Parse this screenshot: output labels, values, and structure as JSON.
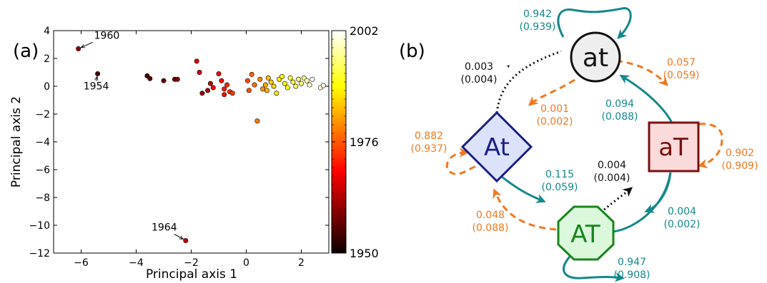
{
  "panel_a": {
    "label": "(a)",
    "xlabel": "Principal axis 1",
    "ylabel": "Principal axis 2",
    "colorbar_ticks": [
      "2002",
      "1976",
      "1950"
    ],
    "annotations": [
      "1960",
      "1954",
      "1964"
    ]
  },
  "chart_data": {
    "type": "scatter",
    "title": "",
    "xlabel": "Principal axis 1",
    "ylabel": "Principal axis 2",
    "xlim": [
      -7,
      3
    ],
    "ylim": [
      -12,
      4
    ],
    "xticks": [
      -6,
      -4,
      -2,
      0,
      2
    ],
    "yticks": [
      4,
      2,
      0,
      -2,
      -4,
      -6,
      -8,
      -10,
      -12
    ],
    "colorbar": {
      "min": 1950,
      "max": 2002,
      "ticks": [
        1950,
        1976,
        2002
      ],
      "colormap": "hot"
    },
    "annotations": [
      {
        "text": "1960",
        "x": -6.1,
        "y": 2.7
      },
      {
        "text": "1954",
        "x": -5.4,
        "y": 0.9
      },
      {
        "text": "1964",
        "x": -2.2,
        "y": -11.1
      }
    ],
    "points": [
      {
        "x": -6.1,
        "y": 2.7,
        "c": 1960
      },
      {
        "x": -5.4,
        "y": 0.9,
        "c": 1954
      },
      {
        "x": -2.2,
        "y": -11.1,
        "c": 1964
      },
      {
        "x": -3.6,
        "y": 0.75,
        "c": 1955
      },
      {
        "x": -3.5,
        "y": 0.55,
        "c": 1956
      },
      {
        "x": -3.0,
        "y": 0.4,
        "c": 1957
      },
      {
        "x": -2.6,
        "y": 0.5,
        "c": 1958
      },
      {
        "x": -2.5,
        "y": 0.5,
        "c": 1959
      },
      {
        "x": -1.8,
        "y": 1.8,
        "c": 1966
      },
      {
        "x": -1.7,
        "y": 1.0,
        "c": 1965
      },
      {
        "x": -1.6,
        "y": -0.5,
        "c": 1961
      },
      {
        "x": -1.4,
        "y": -0.3,
        "c": 1962
      },
      {
        "x": -1.3,
        "y": 0.2,
        "c": 1963
      },
      {
        "x": -1.2,
        "y": -0.1,
        "c": 1967
      },
      {
        "x": -1.0,
        "y": 0.9,
        "c": 1968
      },
      {
        "x": -0.9,
        "y": 0.4,
        "c": 1969
      },
      {
        "x": -0.8,
        "y": -0.6,
        "c": 1970
      },
      {
        "x": -0.8,
        "y": -0.2,
        "c": 1971
      },
      {
        "x": -0.7,
        "y": 0.1,
        "c": 1972
      },
      {
        "x": -0.6,
        "y": -0.4,
        "c": 1973
      },
      {
        "x": -0.5,
        "y": -0.5,
        "c": 1974
      },
      {
        "x": 0.05,
        "y": 0.4,
        "c": 1975
      },
      {
        "x": 0.1,
        "y": -0.3,
        "c": 1976
      },
      {
        "x": 0.2,
        "y": 0.85,
        "c": 1977
      },
      {
        "x": 0.3,
        "y": 0.1,
        "c": 1978
      },
      {
        "x": 0.4,
        "y": -2.5,
        "c": 1979
      },
      {
        "x": 0.5,
        "y": 0.5,
        "c": 1980
      },
      {
        "x": 0.6,
        "y": -0.2,
        "c": 1981
      },
      {
        "x": 0.7,
        "y": 0.1,
        "c": 1982
      },
      {
        "x": 0.75,
        "y": -0.3,
        "c": 1983
      },
      {
        "x": 0.8,
        "y": 0.6,
        "c": 1984
      },
      {
        "x": 0.9,
        "y": 0.3,
        "c": 1985
      },
      {
        "x": 1.0,
        "y": 0.0,
        "c": 1986
      },
      {
        "x": 1.1,
        "y": -0.5,
        "c": 1987
      },
      {
        "x": 1.2,
        "y": 0.5,
        "c": 1988
      },
      {
        "x": 1.3,
        "y": 0.7,
        "c": 1989
      },
      {
        "x": 1.4,
        "y": 0.2,
        "c": 1990
      },
      {
        "x": 1.5,
        "y": -0.1,
        "c": 1991
      },
      {
        "x": 1.6,
        "y": 0.6,
        "c": 1992
      },
      {
        "x": 1.7,
        "y": 0.3,
        "c": 1993
      },
      {
        "x": 1.8,
        "y": 0.0,
        "c": 1994
      },
      {
        "x": 1.9,
        "y": 0.5,
        "c": 1995
      },
      {
        "x": 2.0,
        "y": 0.2,
        "c": 1996
      },
      {
        "x": 2.1,
        "y": 0.6,
        "c": 1997
      },
      {
        "x": 2.2,
        "y": 0.4,
        "c": 1998
      },
      {
        "x": 2.3,
        "y": 0.1,
        "c": 1999
      },
      {
        "x": 2.7,
        "y": -0.1,
        "c": 2000
      },
      {
        "x": 2.8,
        "y": 0.05,
        "c": 2001
      },
      {
        "x": 2.4,
        "y": 0.5,
        "c": 2002
      }
    ]
  },
  "panel_b": {
    "label": "(b)",
    "colors": {
      "teal": "#14888a",
      "orange": "#f07820",
      "black": "#111111"
    },
    "nodes": {
      "at": {
        "label": "at",
        "fill": "#eeeeee",
        "stroke": "#111111",
        "text": "#111111"
      },
      "aT": {
        "label": "aT",
        "fill": "#fadada",
        "stroke": "#7a1010",
        "text": "#7a1010"
      },
      "At": {
        "label": "At",
        "fill": "#dde2fb",
        "stroke": "#1a1e86",
        "text": "#1a1e86"
      },
      "AT": {
        "label": "AT",
        "fill": "#dbf8dc",
        "stroke": "#18861c",
        "text": "#18861c"
      }
    },
    "edges": {
      "at_self": {
        "v1": "0.942",
        "v2": "(0.939)"
      },
      "at_to_aT": {
        "v1": "0.057",
        "v2": "(0.059)"
      },
      "At_to_at": {
        "v1": "0.003",
        "v2": "(0.004)"
      },
      "at_to_At": {
        "v1": "0.001",
        "v2": "(0.002)"
      },
      "aT_to_at": {
        "v1": "0.094",
        "v2": "(0.088)"
      },
      "At_self": {
        "v1": "0.882",
        "v2": "(0.937)"
      },
      "aT_self": {
        "v1": "0.902",
        "v2": "(0.909)"
      },
      "AT_to_aT": {
        "v1": "0.004",
        "v2": "(0.004)"
      },
      "At_to_AT": {
        "v1": "0.115",
        "v2": "(0.059)"
      },
      "AT_to_At": {
        "v1": "0.048",
        "v2": "(0.088)"
      },
      "aT_to_AT": {
        "v1": "0.004",
        "v2": "(0.002)"
      },
      "AT_self": {
        "v1": "0.947",
        "v2": "(0.908)"
      }
    }
  }
}
